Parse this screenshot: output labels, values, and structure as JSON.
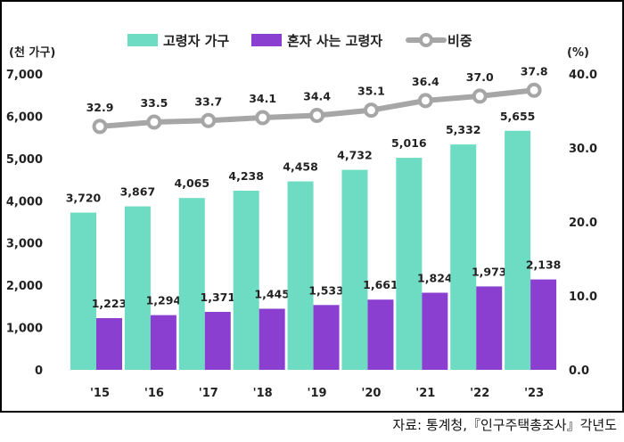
{
  "chart_data": {
    "type": "bar",
    "categories": [
      "'15",
      "'16",
      "'17",
      "'18",
      "'19",
      "'20",
      "'21",
      "'22",
      "'23"
    ],
    "series": [
      {
        "name": "고령자 가구",
        "values": [
          3720,
          3867,
          4065,
          4238,
          4458,
          4732,
          5016,
          5332,
          5655
        ],
        "labels": [
          "3,720",
          "3,867",
          "4,065",
          "4,238",
          "4,458",
          "4,732",
          "5,016",
          "5,332",
          "5,655"
        ],
        "color": "#6ddcc3"
      },
      {
        "name": "혼자 사는 고령자",
        "values": [
          1223,
          1294,
          1371,
          1445,
          1533,
          1661,
          1824,
          1973,
          2138
        ],
        "labels": [
          "1,223",
          "1,294",
          "1,371",
          "1,445",
          "1,533",
          "1,661",
          "1,824",
          "1,973",
          "2,138"
        ],
        "color": "#8b3fd1"
      },
      {
        "name": "비중",
        "type": "line",
        "axis": "right",
        "values": [
          32.9,
          33.5,
          33.7,
          34.1,
          34.4,
          35.1,
          36.4,
          37.0,
          37.8
        ],
        "labels": [
          "32.9",
          "33.5",
          "33.7",
          "34.1",
          "34.4",
          "35.1",
          "36.4",
          "37.0",
          "37.8"
        ],
        "color": "#a6a6a6"
      }
    ],
    "y_left": {
      "unit": "(천 가구)",
      "range": [
        0,
        7000
      ],
      "ticks": [
        "0",
        "1,000",
        "2,000",
        "3,000",
        "4,000",
        "5,000",
        "6,000",
        "7,000"
      ]
    },
    "y_right": {
      "unit": "(%)",
      "range": [
        0,
        40
      ],
      "ticks": [
        "0.0",
        "10.0",
        "20.0",
        "30.0",
        "40.0"
      ]
    },
    "legend": "top",
    "grid": false
  },
  "source": "자료: 통계청,『인구주택총조사』각년도"
}
